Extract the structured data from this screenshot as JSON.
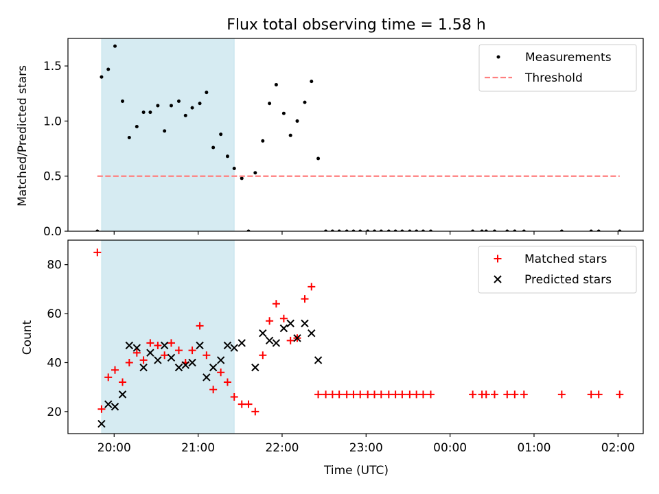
{
  "figure_title": "Flux total observing time = 1.58 h",
  "chart_data": [
    {
      "type": "scatter",
      "ylabel": "Matched/Predicted stars",
      "xlabel": "",
      "x_unit": "time_utc_hours_from_midnight_start_day",
      "xlim": [
        19.45,
        26.3
      ],
      "ylim": [
        0,
        1.75
      ],
      "yticks": [
        0.0,
        0.5,
        1.0,
        1.5
      ],
      "ytick_labels": [
        "0.0",
        "0.5",
        "1.0",
        "1.5"
      ],
      "xticks": [
        20,
        21,
        22,
        23,
        24,
        25,
        26
      ],
      "legend": {
        "placement": "top-right",
        "entries": [
          "Measurements",
          "Threshold"
        ]
      },
      "shaded_interval": {
        "x": [
          19.85,
          21.43
        ],
        "color": "#add8e6"
      },
      "series": [
        {
          "name": "Measurements",
          "marker": "dot",
          "color": "#000000",
          "x": [
            19.8,
            19.85,
            19.93,
            20.01,
            20.1,
            20.18,
            20.27,
            20.35,
            20.43,
            20.52,
            20.6,
            20.68,
            20.77,
            20.85,
            20.93,
            21.02,
            21.1,
            21.18,
            21.27,
            21.35,
            21.43,
            21.52,
            21.6,
            21.68,
            21.77,
            21.85,
            21.93,
            22.02,
            22.1,
            22.18,
            22.27,
            22.35,
            22.43,
            22.52,
            22.6,
            22.68,
            22.77,
            22.85,
            22.93,
            23.02,
            23.1,
            23.18,
            23.27,
            23.35,
            23.43,
            23.52,
            23.6,
            23.68,
            23.77,
            24.27,
            24.38,
            24.43,
            24.53,
            24.68,
            24.77,
            24.88,
            25.33,
            25.68,
            25.77,
            26.02
          ],
          "y": [
            0.0,
            1.4,
            1.47,
            1.68,
            1.18,
            0.85,
            0.95,
            1.08,
            1.08,
            1.14,
            0.91,
            1.14,
            1.18,
            1.05,
            1.12,
            1.16,
            1.26,
            0.76,
            0.88,
            0.68,
            0.57,
            0.48,
            0.0,
            0.53,
            0.82,
            1.16,
            1.33,
            1.07,
            0.87,
            1.0,
            1.17,
            1.36,
            0.66,
            0.0,
            0.0,
            0.0,
            0.0,
            0.0,
            0.0,
            0.0,
            0.0,
            0.0,
            0.0,
            0.0,
            0.0,
            0.0,
            0.0,
            0.0,
            0.0,
            0.0,
            0.0,
            0.0,
            0.0,
            0.0,
            0.0,
            0.0,
            0.0,
            0.0,
            0.0,
            0.0
          ]
        },
        {
          "name": "Threshold",
          "line": "dashed",
          "color": "#ff7f7f",
          "x": [
            19.8,
            26.02
          ],
          "y": [
            0.5,
            0.5
          ]
        }
      ]
    },
    {
      "type": "scatter",
      "ylabel": "Count",
      "xlabel": "Time (UTC)",
      "x_unit": "time_utc_hours_from_midnight_start_day",
      "xlim": [
        19.45,
        26.3
      ],
      "ylim": [
        11,
        90
      ],
      "yticks": [
        20,
        40,
        60,
        80
      ],
      "ytick_labels": [
        "20",
        "40",
        "60",
        "80"
      ],
      "xticks": [
        20,
        21,
        22,
        23,
        24,
        25,
        26
      ],
      "xtick_labels": [
        "20:00",
        "21:00",
        "22:00",
        "23:00",
        "00:00",
        "01:00",
        "02:00"
      ],
      "legend": {
        "placement": "top-right",
        "entries": [
          "Matched stars",
          "Predicted stars"
        ]
      },
      "shaded_interval": {
        "x": [
          19.85,
          21.43
        ],
        "color": "#add8e6"
      },
      "series": [
        {
          "name": "Matched stars",
          "marker": "plus",
          "color": "#ff0000",
          "x": [
            19.8,
            19.85,
            19.93,
            20.01,
            20.1,
            20.18,
            20.27,
            20.35,
            20.43,
            20.52,
            20.6,
            20.68,
            20.77,
            20.85,
            20.93,
            21.02,
            21.1,
            21.18,
            21.27,
            21.35,
            21.43,
            21.52,
            21.6,
            21.68,
            21.77,
            21.85,
            21.93,
            22.02,
            22.1,
            22.18,
            22.27,
            22.35,
            22.43,
            22.52,
            22.6,
            22.68,
            22.77,
            22.85,
            22.93,
            23.02,
            23.1,
            23.18,
            23.27,
            23.35,
            23.43,
            23.52,
            23.6,
            23.68,
            23.77,
            24.27,
            24.38,
            24.43,
            24.53,
            24.68,
            24.77,
            24.88,
            25.33,
            25.68,
            25.77,
            26.02
          ],
          "y": [
            85,
            21,
            34,
            37,
            32,
            40,
            44,
            41,
            48,
            47,
            43,
            48,
            45,
            40,
            45,
            55,
            43,
            29,
            36,
            32,
            26,
            23,
            23,
            20,
            43,
            57,
            64,
            58,
            49,
            50,
            66,
            71,
            27,
            27,
            27,
            27,
            27,
            27,
            27,
            27,
            27,
            27,
            27,
            27,
            27,
            27,
            27,
            27,
            27,
            27,
            27,
            27,
            27,
            27,
            27,
            27,
            27,
            27,
            27,
            27
          ]
        },
        {
          "name": "Predicted stars",
          "marker": "x",
          "color": "#000000",
          "x": [
            19.85,
            19.93,
            20.01,
            20.1,
            20.18,
            20.27,
            20.35,
            20.43,
            20.52,
            20.6,
            20.68,
            20.77,
            20.85,
            20.93,
            21.02,
            21.1,
            21.18,
            21.27,
            21.35,
            21.43,
            21.52,
            21.68,
            21.77,
            21.85,
            21.93,
            22.02,
            22.1,
            22.18,
            22.27,
            22.35,
            22.43
          ],
          "y": [
            15,
            23,
            22,
            27,
            47,
            46,
            38,
            44,
            41,
            47,
            42,
            38,
            39,
            40,
            47,
            34,
            38,
            41,
            47,
            46,
            48,
            38,
            52,
            49,
            48,
            54,
            56,
            50,
            56,
            52,
            41
          ]
        }
      ]
    }
  ]
}
